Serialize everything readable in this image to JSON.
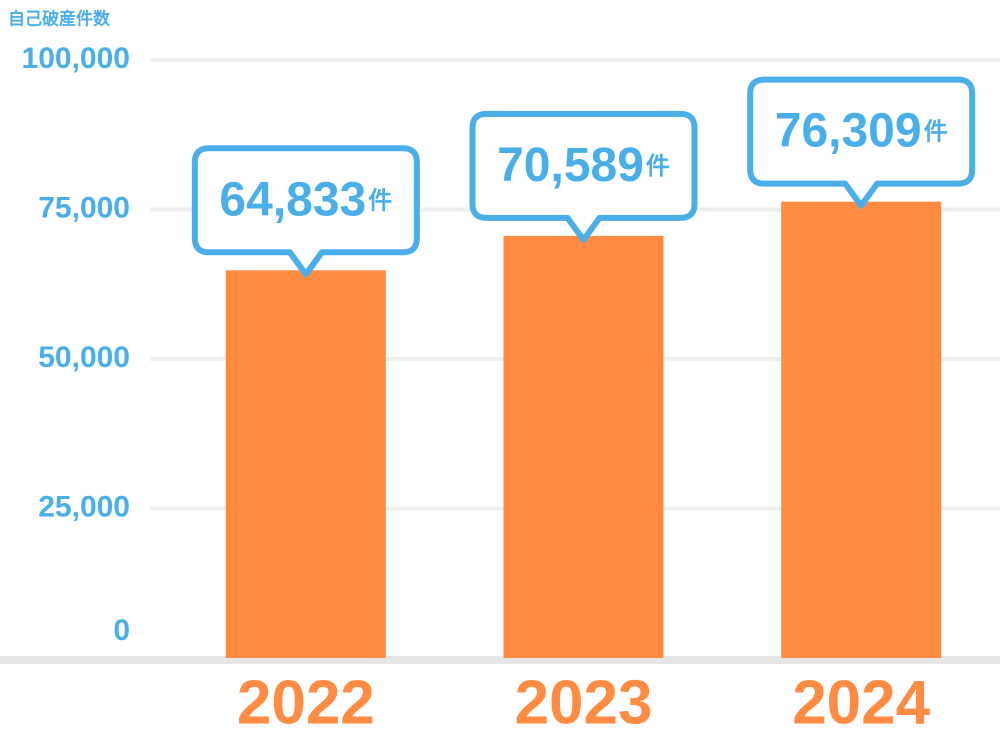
{
  "chart_data": {
    "type": "bar",
    "y_axis_label": "自己破産件数",
    "categories": [
      "2022",
      "2023",
      "2024"
    ],
    "values": [
      64833,
      70589,
      76309
    ],
    "value_labels": [
      "64,833",
      "70,589",
      "76,309"
    ],
    "unit": "件",
    "color": "#ff8c42",
    "label_color": "#4aaee8",
    "ylim": [
      0,
      100000
    ],
    "yticks": [
      0,
      {
        "value": 25000,
        "label": "25,000"
      },
      {
        "value": 50000,
        "label": "50,000"
      },
      {
        "value": 75000,
        "label": "75,000"
      },
      {
        "value": 100000,
        "label": "100,000"
      }
    ],
    "grid": true
  }
}
